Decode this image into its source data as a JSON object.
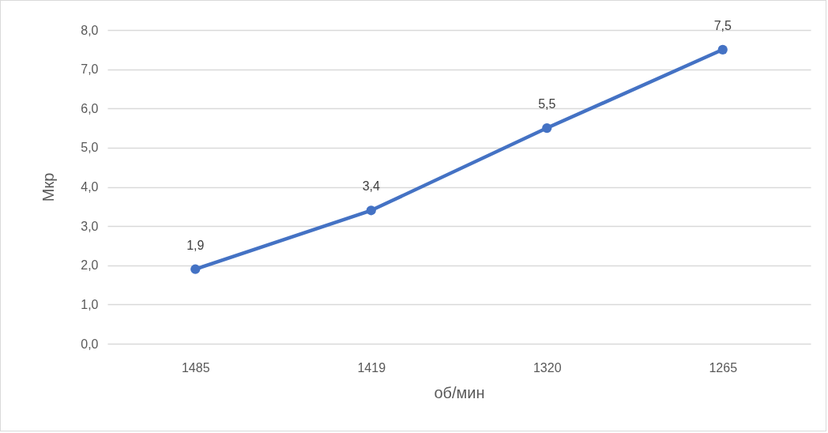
{
  "chart_data": {
    "type": "line",
    "xlabel": "об/мин",
    "ylabel": "Мкр",
    "categories": [
      "1485",
      "1419",
      "1320",
      "1265"
    ],
    "series": [
      {
        "color": "#4472c4",
        "values": [
          1.9,
          3.4,
          5.5,
          7.5
        ],
        "value_labels": [
          "1,9",
          "3,4",
          "5,5",
          "7,5"
        ]
      }
    ],
    "ylim": [
      0,
      8
    ],
    "yticks": [
      {
        "value": 0,
        "label": "0,0"
      },
      {
        "value": 1,
        "label": "1,0"
      },
      {
        "value": 2,
        "label": "2,0"
      },
      {
        "value": 3,
        "label": "3,0"
      },
      {
        "value": 4,
        "label": "4,0"
      },
      {
        "value": 5,
        "label": "5,0"
      },
      {
        "value": 6,
        "label": "6,0"
      },
      {
        "value": 7,
        "label": "7,0"
      },
      {
        "value": 8,
        "label": "8,0"
      }
    ],
    "grid": "y",
    "marker": "circle",
    "line_style": "solid"
  }
}
